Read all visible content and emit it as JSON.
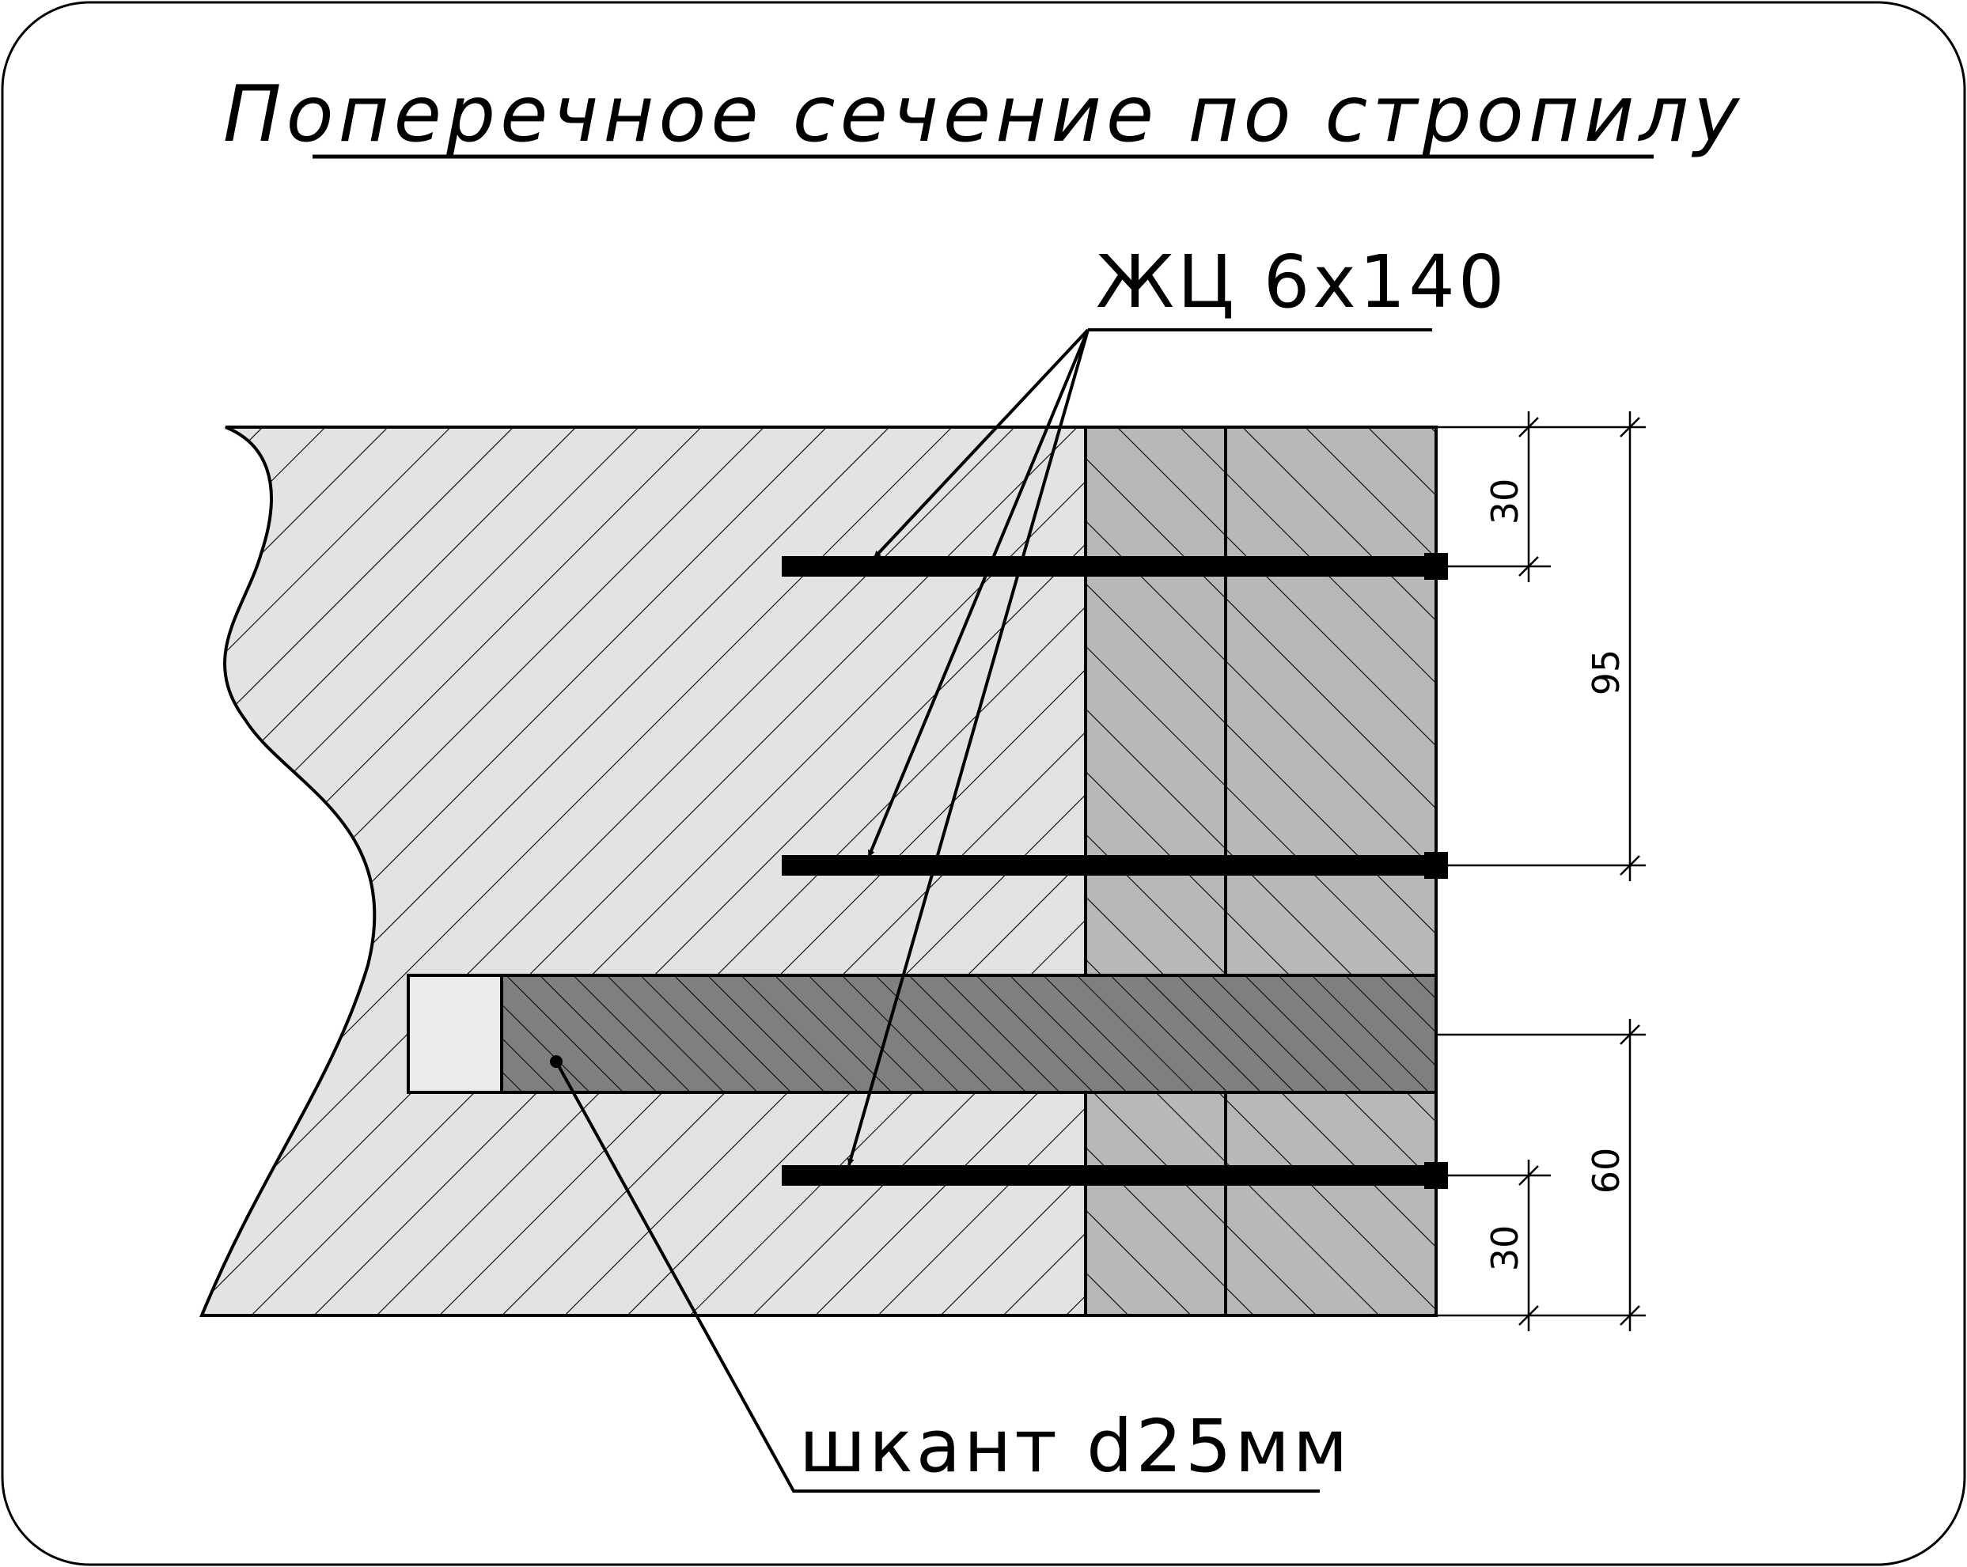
{
  "title": "Поперечное сечение по стропилу",
  "callouts": {
    "nails": "ЖЦ 6х140",
    "dowel": "шкант d25мм"
  },
  "dimensions": {
    "top_spacing": "30",
    "upper_span": "95",
    "lower_span": "60",
    "bottom_spacing": "30"
  },
  "colors": {
    "rafter_fill": "#e3e3e3",
    "board_fill": "#b8b8b8",
    "dowel_fill": "#7f7f7f",
    "hole_fill": "#ebebeb",
    "line": "#000000"
  }
}
